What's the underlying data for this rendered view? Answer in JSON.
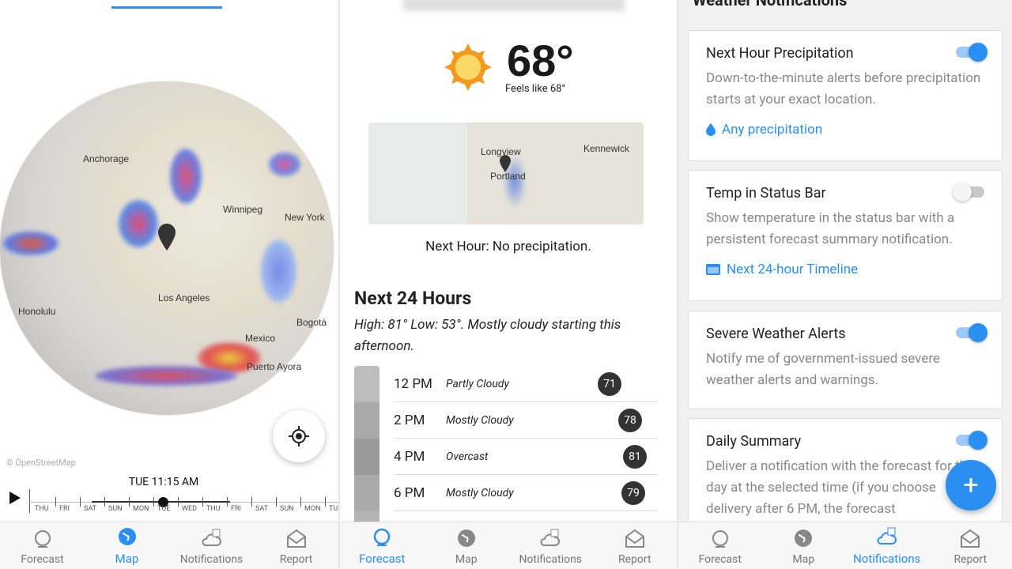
{
  "nav": {
    "items": [
      {
        "label": "Forecast"
      },
      {
        "label": "Map"
      },
      {
        "label": "Notifications"
      },
      {
        "label": "Report"
      }
    ]
  },
  "map_screen": {
    "active_tab": "Map",
    "labels": [
      "Anchorage",
      "Winnipeg",
      "New York",
      "Honolulu",
      "Los Angeles",
      "Bogotá",
      "Mexico",
      "Puerto Ayora"
    ],
    "attribution": "© OpenStreetMap",
    "current_time": "TUE 11:15 AM",
    "timeline_days": [
      "THU",
      "FRI",
      "SAT",
      "SUN",
      "MON",
      "TUE",
      "WED",
      "THU",
      "FRI",
      "SAT",
      "SUN",
      "MON",
      "TU"
    ]
  },
  "forecast_screen": {
    "active_tab": "Forecast",
    "temperature": "68°",
    "feels_like": "Feels like 68°",
    "map_labels": [
      "Longview",
      "Portland",
      "Kennewick"
    ],
    "next_hour": "Next Hour: No precipitation.",
    "heading": "Next 24 Hours",
    "summary": "High: 81° Low: 53°. Mostly cloudy starting this afternoon.",
    "hours": [
      {
        "time": "12 PM",
        "condition": "Partly Cloudy",
        "temp": "71"
      },
      {
        "time": "2 PM",
        "condition": "Mostly Cloudy",
        "temp": "78"
      },
      {
        "time": "4 PM",
        "condition": "Overcast",
        "temp": "81"
      },
      {
        "time": "6 PM",
        "condition": "Mostly Cloudy",
        "temp": "79"
      }
    ]
  },
  "notifications_screen": {
    "active_tab": "Notifications",
    "title": "Weather Notifications",
    "cards": [
      {
        "title": "Next Hour Precipitation",
        "enabled": true,
        "description": "Down-to-the-minute alerts before precipitation starts at your exact location.",
        "link": "Any precipitation",
        "link_icon": "droplet-icon"
      },
      {
        "title": "Temp in Status Bar",
        "enabled": false,
        "description": "Show temperature in the status bar with a persistent forecast summary notification.",
        "link": "Next 24-hour Timeline",
        "link_icon": "card-icon"
      },
      {
        "title": "Severe Weather Alerts",
        "enabled": true,
        "description": "Notify me of government-issued severe weather alerts and warnings."
      },
      {
        "title": "Daily Summary",
        "enabled": true,
        "description": "Deliver a notification with the forecast for the day at the selected time (if you choose delivery after 6 PM, the forecast"
      }
    ],
    "fab_label": "+"
  },
  "colors": {
    "accent": "#2a8ff0",
    "badge": "#333333"
  }
}
